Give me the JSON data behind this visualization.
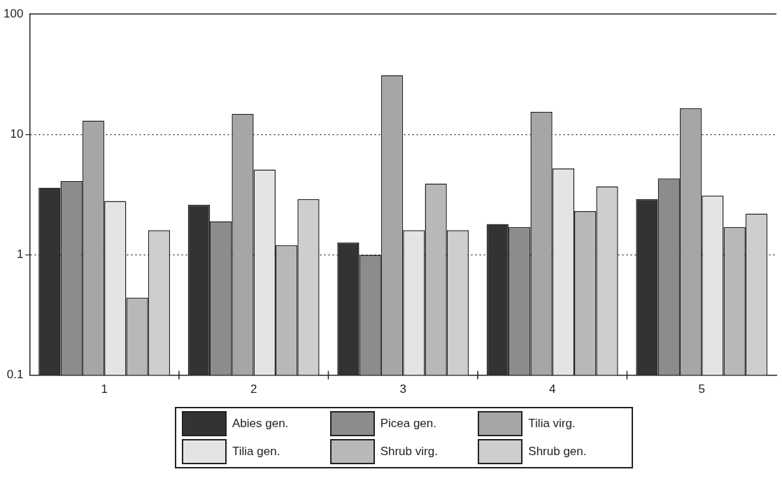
{
  "chart_data": {
    "type": "bar",
    "categories": [
      "1",
      "2",
      "3",
      "4",
      "5"
    ],
    "series": [
      {
        "name": "Abies gen.",
        "color": "#333333",
        "values": [
          3.6,
          2.6,
          1.26,
          1.8,
          2.9
        ]
      },
      {
        "name": "Picea gen.",
        "color": "#8c8c8c",
        "values": [
          4.1,
          1.9,
          1.0,
          1.7,
          4.3
        ]
      },
      {
        "name": "Tilia virg.",
        "color": "#a6a6a6",
        "values": [
          13,
          14.8,
          31,
          15.4,
          16.5
        ]
      },
      {
        "name": "Tilia gen.",
        "color": "#e4e4e4",
        "values": [
          2.8,
          5.1,
          1.6,
          5.2,
          3.1
        ]
      },
      {
        "name": "Shrub virg.",
        "color": "#b8b8b8",
        "values": [
          0.44,
          1.2,
          3.9,
          2.3,
          1.7
        ]
      },
      {
        "name": "Shrub gen.",
        "color": "#cecece",
        "values": [
          1.6,
          2.9,
          1.6,
          3.7,
          2.2
        ]
      }
    ],
    "log": "y",
    "ylim": [
      0.1,
      100
    ],
    "yticks": [
      0.1,
      1,
      10,
      100
    ],
    "grid": "y",
    "legend": "bottom"
  }
}
